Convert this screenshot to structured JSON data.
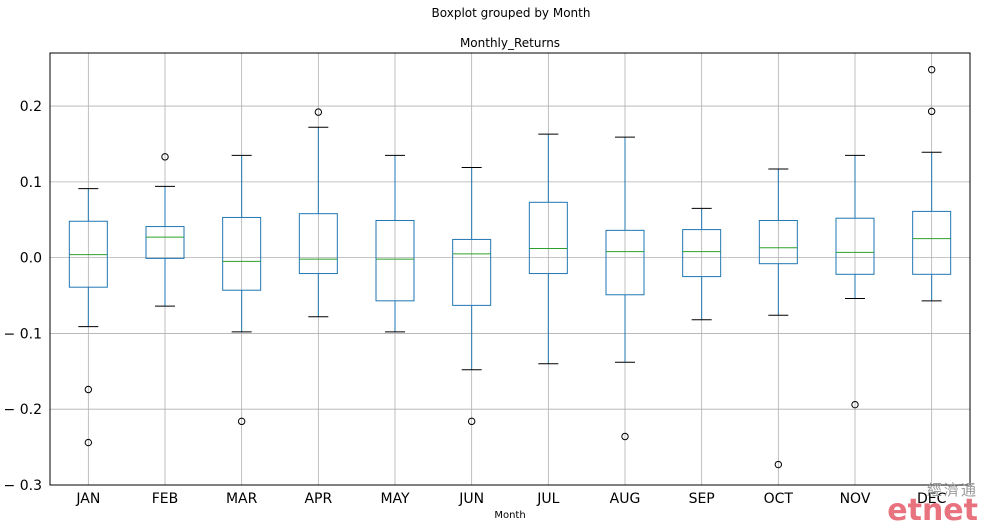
{
  "chart_data": {
    "type": "boxplot",
    "suptitle": "Boxplot grouped by Month",
    "title": "Monthly_Returns",
    "xlabel": "Month",
    "ylabel": "",
    "ylim": [
      -0.3,
      0.27
    ],
    "yticks": [
      0.2,
      0.1,
      0.0,
      -0.1,
      -0.2,
      -0.3
    ],
    "ytick_labels": [
      "0.2",
      "0.1",
      "0.0",
      "− 0.1",
      "− 0.2",
      "− 0.3"
    ],
    "grid": true,
    "categories": [
      "JAN",
      "FEB",
      "MAR",
      "APR",
      "MAY",
      "JUN",
      "JUL",
      "AUG",
      "SEP",
      "OCT",
      "NOV",
      "DEC"
    ],
    "boxes": [
      {
        "whisker_low": -0.091,
        "q1": -0.039,
        "median": 0.004,
        "q3": 0.048,
        "whisker_high": 0.091,
        "fliers": [
          -0.174,
          -0.244
        ]
      },
      {
        "whisker_low": -0.064,
        "q1": -0.001,
        "median": 0.027,
        "q3": 0.041,
        "whisker_high": 0.094,
        "fliers": [
          0.133
        ]
      },
      {
        "whisker_low": -0.098,
        "q1": -0.043,
        "median": -0.005,
        "q3": 0.053,
        "whisker_high": 0.135,
        "fliers": [
          -0.216
        ]
      },
      {
        "whisker_low": -0.078,
        "q1": -0.021,
        "median": -0.002,
        "q3": 0.058,
        "whisker_high": 0.172,
        "fliers": [
          0.192
        ]
      },
      {
        "whisker_low": -0.098,
        "q1": -0.057,
        "median": -0.002,
        "q3": 0.049,
        "whisker_high": 0.135,
        "fliers": []
      },
      {
        "whisker_low": -0.148,
        "q1": -0.063,
        "median": 0.005,
        "q3": 0.024,
        "whisker_high": 0.119,
        "fliers": [
          -0.216
        ]
      },
      {
        "whisker_low": -0.14,
        "q1": -0.021,
        "median": 0.012,
        "q3": 0.073,
        "whisker_high": 0.163,
        "fliers": []
      },
      {
        "whisker_low": -0.138,
        "q1": -0.049,
        "median": 0.008,
        "q3": 0.036,
        "whisker_high": 0.159,
        "fliers": [
          -0.236
        ]
      },
      {
        "whisker_low": -0.082,
        "q1": -0.025,
        "median": 0.008,
        "q3": 0.037,
        "whisker_high": 0.065,
        "fliers": []
      },
      {
        "whisker_low": -0.076,
        "q1": -0.008,
        "median": 0.013,
        "q3": 0.049,
        "whisker_high": 0.117,
        "fliers": [
          -0.273
        ]
      },
      {
        "whisker_low": -0.054,
        "q1": -0.022,
        "median": 0.007,
        "q3": 0.052,
        "whisker_high": 0.135,
        "fliers": [
          -0.194
        ]
      },
      {
        "whisker_low": -0.057,
        "q1": -0.022,
        "median": 0.025,
        "q3": 0.061,
        "whisker_high": 0.139,
        "fliers": [
          0.193,
          0.248
        ]
      }
    ],
    "colors": {
      "box": "#1f77b4",
      "median": "#2ca02c",
      "cap": "#000000",
      "grid": "#b0b0b0"
    }
  },
  "watermark": {
    "chinese": "經濟通",
    "logo": "etnet"
  }
}
